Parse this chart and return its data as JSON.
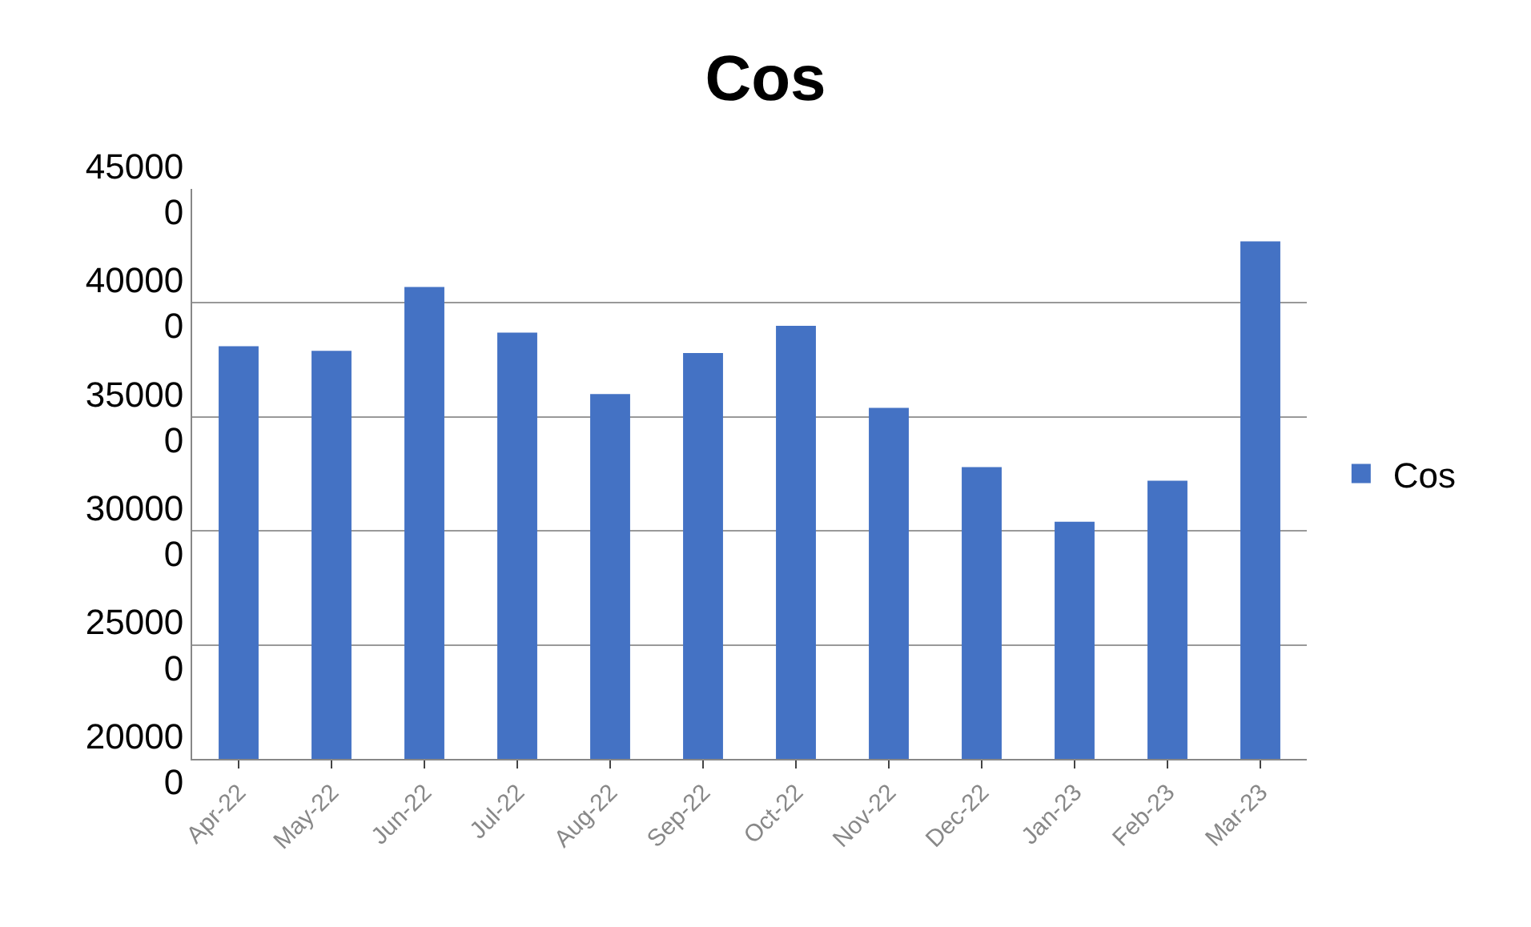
{
  "chart_data": {
    "type": "bar",
    "title": "Cos",
    "categories": [
      "Apr-22",
      "May-22",
      "Jun-22",
      "Jul-22",
      "Aug-22",
      "Sep-22",
      "Oct-22",
      "Nov-22",
      "Dec-22",
      "Jan-23",
      "Feb-23",
      "Mar-23"
    ],
    "series": [
      {
        "name": "Cos",
        "color": "#4472c4",
        "values": [
          381000,
          379000,
          407000,
          387000,
          360000,
          378000,
          390000,
          354000,
          328000,
          304000,
          322000,
          427000
        ]
      }
    ],
    "ylim": [
      200000,
      450000
    ],
    "yticks": [
      200000,
      250000,
      300000,
      350000,
      400000,
      450000
    ],
    "grid": "y",
    "legend": "right"
  }
}
